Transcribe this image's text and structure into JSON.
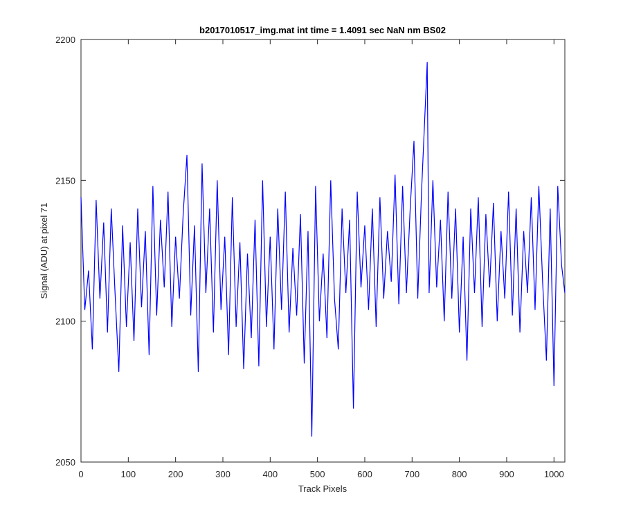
{
  "chart_data": {
    "type": "line",
    "title": "b2017010517_img.mat int time = 1.4091 sec  NaN nm BS02",
    "x_label": "Track Pixels",
    "y_label": "Signal (ADU) at pixel 71",
    "x": [
      0,
      8,
      16,
      24,
      32,
      40,
      48,
      56,
      64,
      72,
      80,
      88,
      96,
      104,
      112,
      120,
      128,
      136,
      144,
      152,
      160,
      168,
      176,
      184,
      192,
      200,
      208,
      216,
      224,
      232,
      240,
      248,
      256,
      264,
      272,
      280,
      288,
      296,
      304,
      312,
      320,
      328,
      336,
      344,
      352,
      360,
      368,
      376,
      384,
      392,
      400,
      408,
      416,
      424,
      432,
      440,
      448,
      456,
      464,
      472,
      480,
      488,
      496,
      504,
      512,
      520,
      528,
      536,
      544,
      552,
      560,
      568,
      576,
      584,
      592,
      600,
      608,
      616,
      624,
      632,
      640,
      648,
      656,
      664,
      672,
      680,
      688,
      696,
      704,
      712,
      720,
      732,
      736,
      744,
      752,
      760,
      768,
      776,
      784,
      792,
      800,
      808,
      816,
      824,
      832,
      840,
      848,
      856,
      864,
      872,
      880,
      888,
      896,
      904,
      912,
      920,
      928,
      936,
      944,
      952,
      960,
      968,
      976,
      984,
      992,
      1000,
      1008,
      1016,
      1023
    ],
    "series": [
      {
        "name": "signal",
        "color": "#0000ff",
        "values": [
          2144,
          2104,
          2118,
          2090,
          2143,
          2108,
          2135,
          2096,
          2140,
          2110,
          2082,
          2134,
          2098,
          2128,
          2093,
          2140,
          2105,
          2132,
          2088,
          2148,
          2102,
          2136,
          2112,
          2146,
          2098,
          2130,
          2108,
          2138,
          2159,
          2102,
          2134,
          2082,
          2156,
          2110,
          2140,
          2096,
          2150,
          2104,
          2130,
          2088,
          2144,
          2098,
          2128,
          2083,
          2124,
          2094,
          2136,
          2084,
          2150,
          2098,
          2130,
          2090,
          2140,
          2104,
          2146,
          2096,
          2126,
          2102,
          2138,
          2085,
          2132,
          2059,
          2148,
          2100,
          2124,
          2094,
          2150,
          2108,
          2090,
          2140,
          2110,
          2136,
          2069,
          2146,
          2112,
          2134,
          2104,
          2140,
          2098,
          2144,
          2108,
          2132,
          2114,
          2152,
          2106,
          2148,
          2110,
          2140,
          2164,
          2108,
          2146,
          2192,
          2110,
          2150,
          2112,
          2136,
          2100,
          2146,
          2108,
          2140,
          2096,
          2130,
          2086,
          2140,
          2110,
          2144,
          2098,
          2138,
          2112,
          2142,
          2100,
          2132,
          2108,
          2146,
          2102,
          2140,
          2096,
          2132,
          2110,
          2144,
          2104,
          2148,
          2114,
          2086,
          2140,
          2077,
          2148,
          2120,
          2110
        ]
      }
    ],
    "xlim": [
      0,
      1023
    ],
    "ylim": [
      2050,
      2200
    ],
    "xticks": [
      0,
      100,
      200,
      300,
      400,
      500,
      600,
      700,
      800,
      900,
      1000
    ],
    "yticks": [
      2050,
      2100,
      2150,
      2200
    ],
    "grid": false
  }
}
